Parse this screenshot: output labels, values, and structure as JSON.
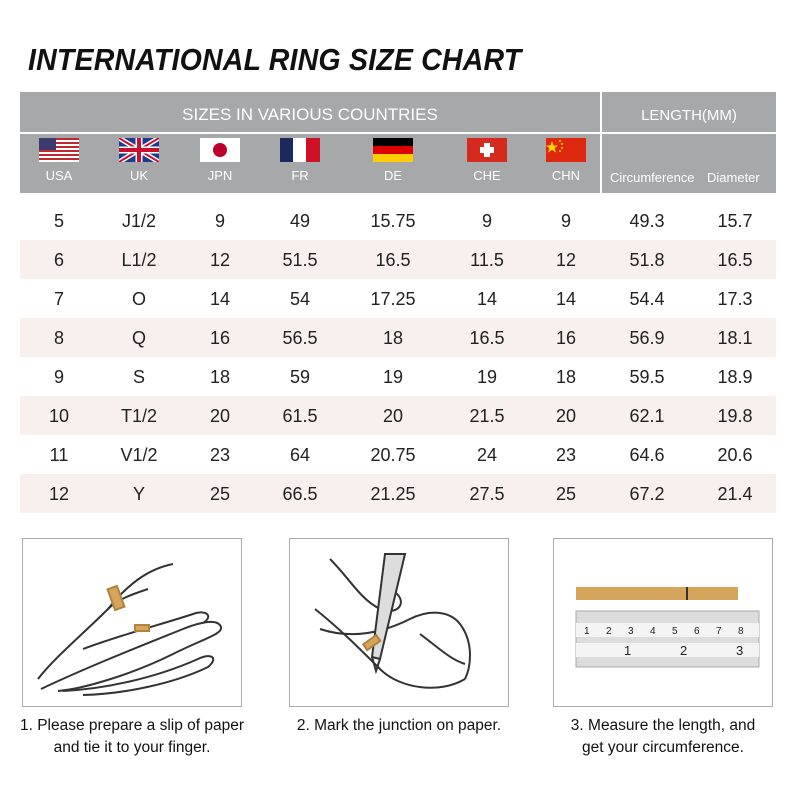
{
  "title": "INTERNATIONAL RING SIZE CHART",
  "header": {
    "sizes_label": "SIZES IN VARIOUS COUNTRIES",
    "length_label": "LENGTH(MM)",
    "countries": [
      {
        "code": "USA",
        "flag": "us-flag"
      },
      {
        "code": "UK",
        "flag": "uk-flag"
      },
      {
        "code": "JPN",
        "flag": "japan-flag"
      },
      {
        "code": "FR",
        "flag": "france-flag"
      },
      {
        "code": "DE",
        "flag": "germany-flag"
      },
      {
        "code": "CHE",
        "flag": "switzerland-flag"
      },
      {
        "code": "CHN",
        "flag": "china-flag"
      }
    ],
    "circumference": "Circumference",
    "diameter": "Diameter"
  },
  "rows": [
    [
      "5",
      "J1/2",
      "9",
      "49",
      "15.75",
      "9",
      "9",
      "49.3",
      "15.7"
    ],
    [
      "6",
      "L1/2",
      "12",
      "51.5",
      "16.5",
      "11.5",
      "12",
      "51.8",
      "16.5"
    ],
    [
      "7",
      "O",
      "14",
      "54",
      "17.25",
      "14",
      "14",
      "54.4",
      "17.3"
    ],
    [
      "8",
      "Q",
      "16",
      "56.5",
      "18",
      "16.5",
      "16",
      "56.9",
      "18.1"
    ],
    [
      "9",
      "S",
      "18",
      "59",
      "19",
      "19",
      "18",
      "59.5",
      "18.9"
    ],
    [
      "10",
      "T1/2",
      "20",
      "61.5",
      "20",
      "21.5",
      "20",
      "62.1",
      "19.8"
    ],
    [
      "11",
      "V1/2",
      "23",
      "64",
      "20.75",
      "24",
      "23",
      "64.6",
      "20.6"
    ],
    [
      "12",
      "Y",
      "25",
      "66.5",
      "21.25",
      "27.5",
      "25",
      "67.2",
      "21.4"
    ]
  ],
  "colors": {
    "header_bg": "#a7a8aa",
    "alt_row": "#f7f0ec",
    "paper": "#d4a55a"
  },
  "steps": [
    {
      "line1": "1. Please prepare a slip of paper",
      "line2": "and tie it to your finger."
    },
    {
      "line1": "2. Mark the junction on paper.",
      "line2": ""
    },
    {
      "line1": "3. Measure the length, and",
      "line2": "get your circumference."
    }
  ],
  "ruler": {
    "cm": [
      "1",
      "2",
      "3",
      "4",
      "5",
      "6",
      "7",
      "8"
    ],
    "inch": [
      "1",
      "2",
      "3"
    ]
  }
}
